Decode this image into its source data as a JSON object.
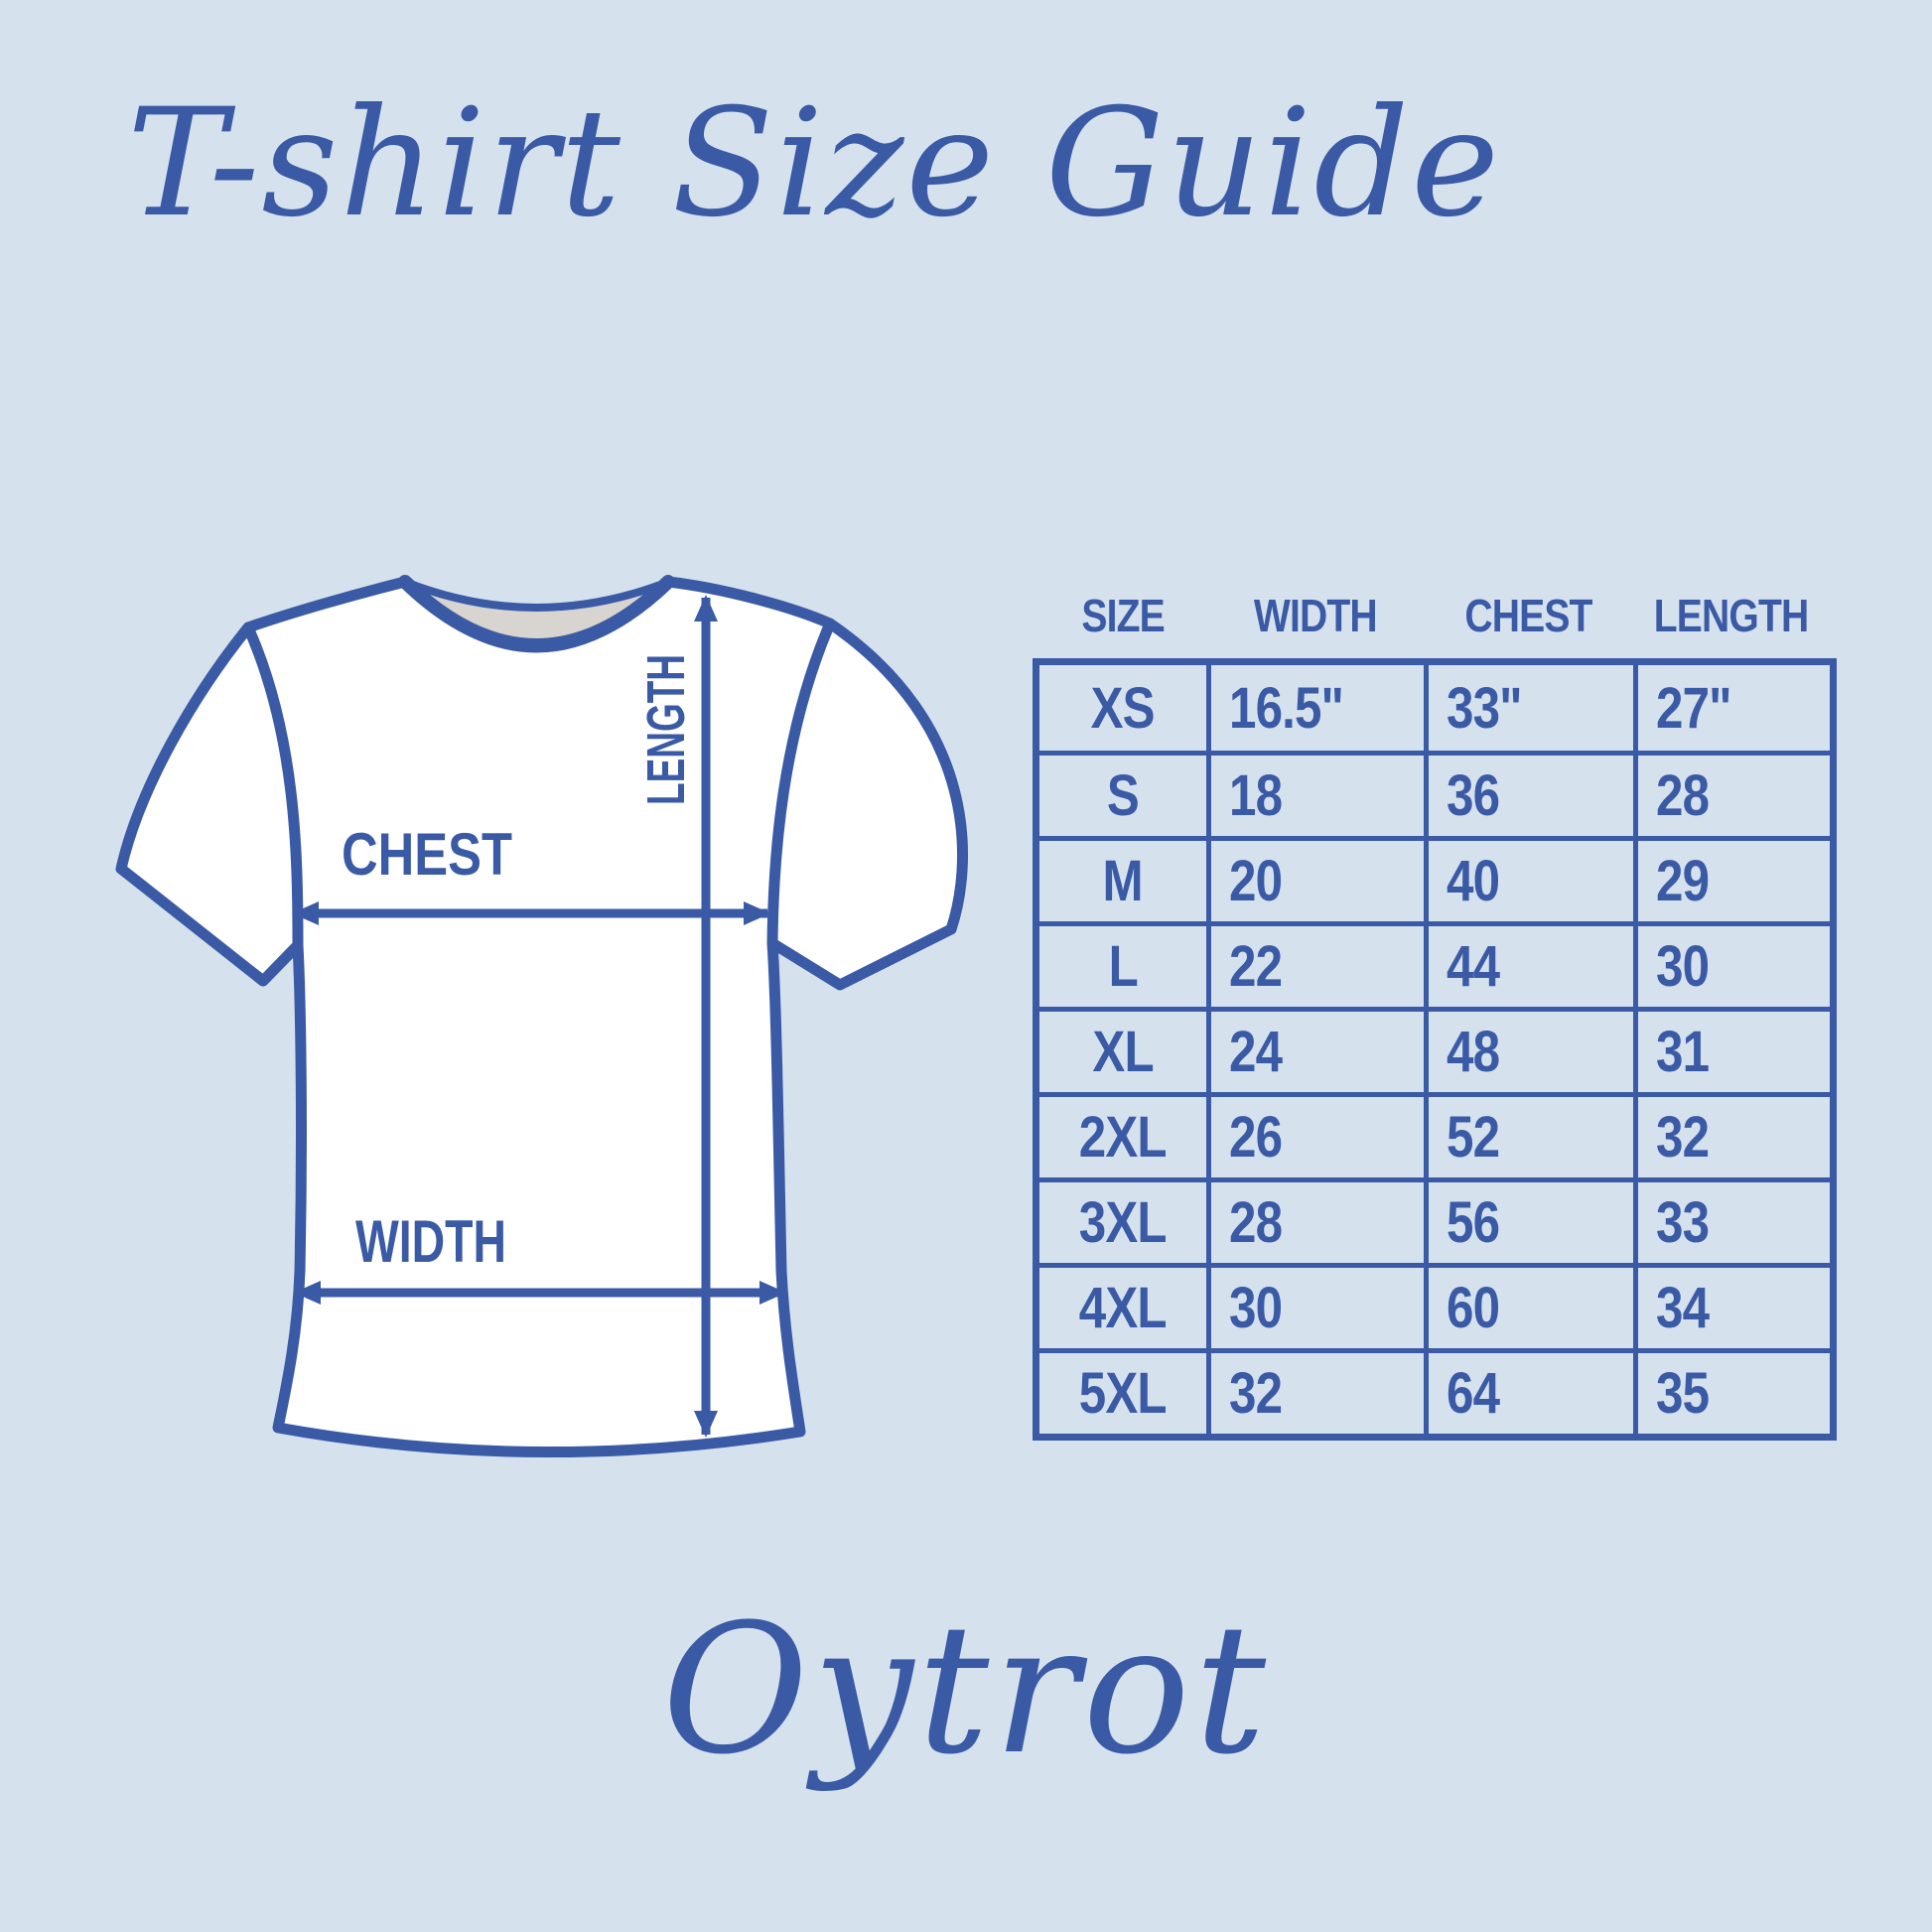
{
  "title": "T-shirt Size Guide",
  "brand_logo": "Oytrot",
  "colors": {
    "background": "#d5e2ee",
    "ink": "#3b5aa5",
    "shirt_fill": "#ffffff",
    "collar_gray": "#d8d5d0"
  },
  "shirt_diagram": {
    "chest_label": "CHEST",
    "width_label": "WIDTH",
    "length_label": "LENGTH"
  },
  "size_table": {
    "headers": [
      "SIZE",
      "WIDTH",
      "CHEST",
      "LENGTH"
    ],
    "rows": [
      [
        "XS",
        "16.5\"",
        "33\"",
        "27\""
      ],
      [
        "S",
        "18",
        "36",
        "28"
      ],
      [
        "M",
        "20",
        "40",
        "29"
      ],
      [
        "L",
        "22",
        "44",
        "30"
      ],
      [
        "XL",
        "24",
        "48",
        "31"
      ],
      [
        "2XL",
        "26",
        "52",
        "32"
      ],
      [
        "3XL",
        "28",
        "56",
        "33"
      ],
      [
        "4XL",
        "30",
        "60",
        "34"
      ],
      [
        "5XL",
        "32",
        "64",
        "35"
      ]
    ]
  }
}
